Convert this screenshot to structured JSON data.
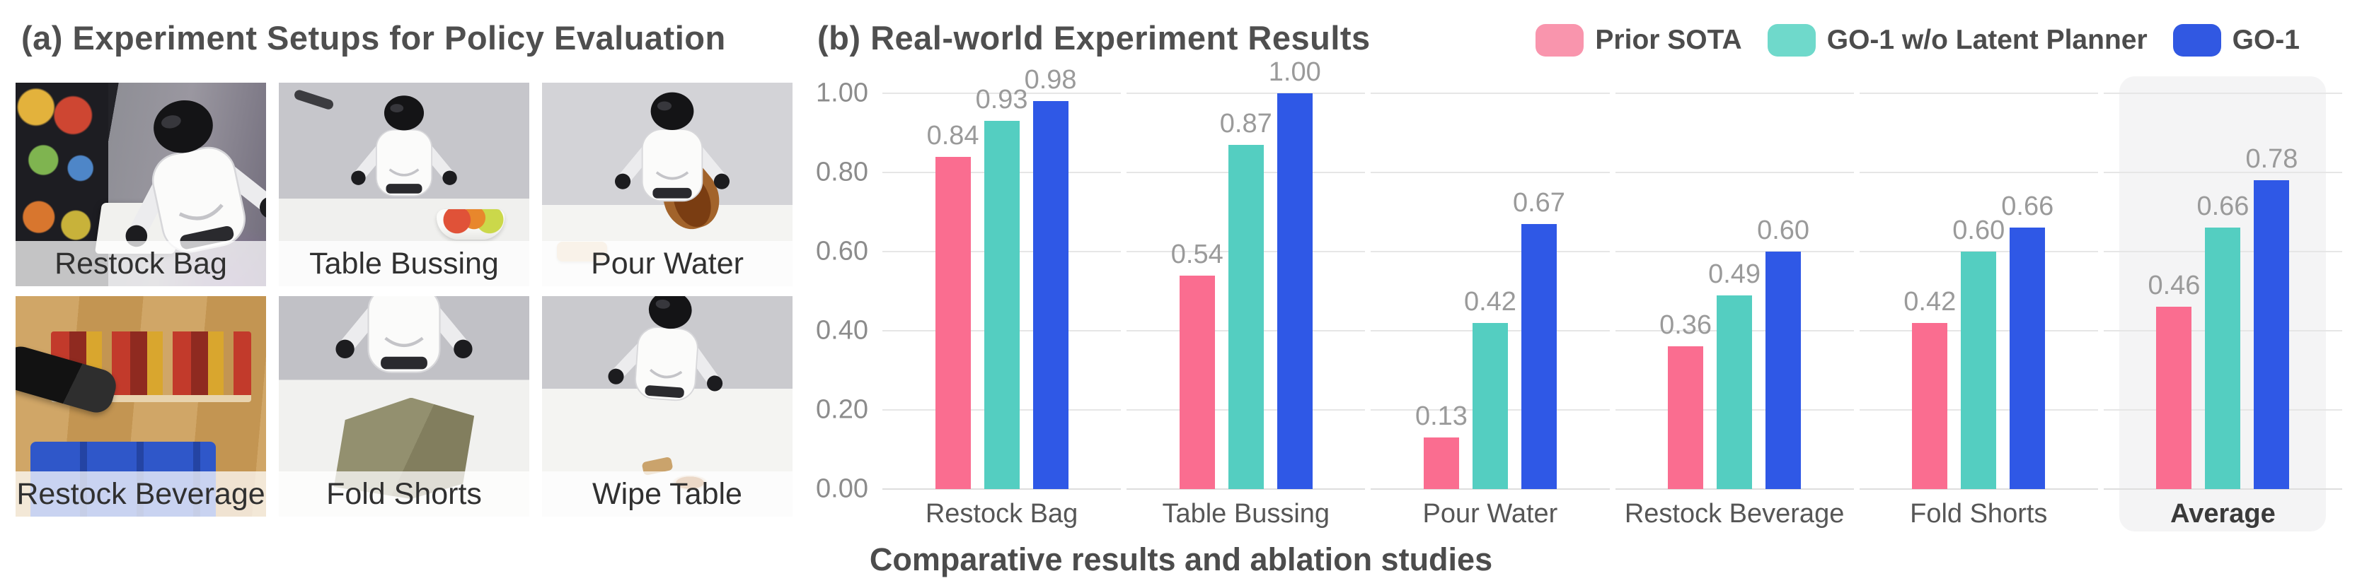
{
  "panel_a": {
    "title": "(a) Experiment Setups for Policy Evaluation",
    "photos": [
      {
        "id": "restock-bag",
        "label": "Restock Bag"
      },
      {
        "id": "table-bussing",
        "label": "Table Bussing"
      },
      {
        "id": "pour-water",
        "label": "Pour Water"
      },
      {
        "id": "restock-beverage",
        "label": "Restock Beverage"
      },
      {
        "id": "fold-shorts",
        "label": "Fold Shorts"
      },
      {
        "id": "wipe-table",
        "label": "Wipe Table"
      }
    ]
  },
  "panel_b": {
    "title": "(b) Real-world Experiment Results",
    "caption": "Comparative results and ablation studies"
  },
  "chart_data": {
    "type": "bar",
    "title": "(b) Real-world Experiment Results",
    "categories": [
      "Restock Bag",
      "Table Bussing",
      "Pour Water",
      "Restock Beverage",
      "Fold Shorts",
      "Average"
    ],
    "series": [
      {
        "name": "Prior SOTA",
        "color": "#FA6D90",
        "legend_color": "#F995AD",
        "values": [
          0.84,
          0.54,
          0.13,
          0.36,
          0.42,
          0.46
        ]
      },
      {
        "name": "GO-1 w/o Latent Planner",
        "color": "#54CEC1",
        "legend_color": "#6FD9CB",
        "values": [
          0.93,
          0.87,
          0.42,
          0.49,
          0.6,
          0.66
        ]
      },
      {
        "name": "GO-1",
        "color": "#2F58E6",
        "legend_color": "#3158E2",
        "values": [
          0.98,
          1.0,
          0.67,
          0.6,
          0.66,
          0.78
        ]
      }
    ],
    "y_ticks": [
      "0.00",
      "0.20",
      "0.40",
      "0.60",
      "0.80",
      "1.00"
    ],
    "ylim": [
      0,
      1
    ],
    "grid": true,
    "legend_position": "top-right",
    "highlight_category": "Average",
    "gridline_color": "#E6E6E6",
    "highlight_color": "#F4F4F5",
    "value_label_color": "#9A9A9A",
    "tick_label_color": "#8C8C8C",
    "category_label_color": "#565656"
  }
}
